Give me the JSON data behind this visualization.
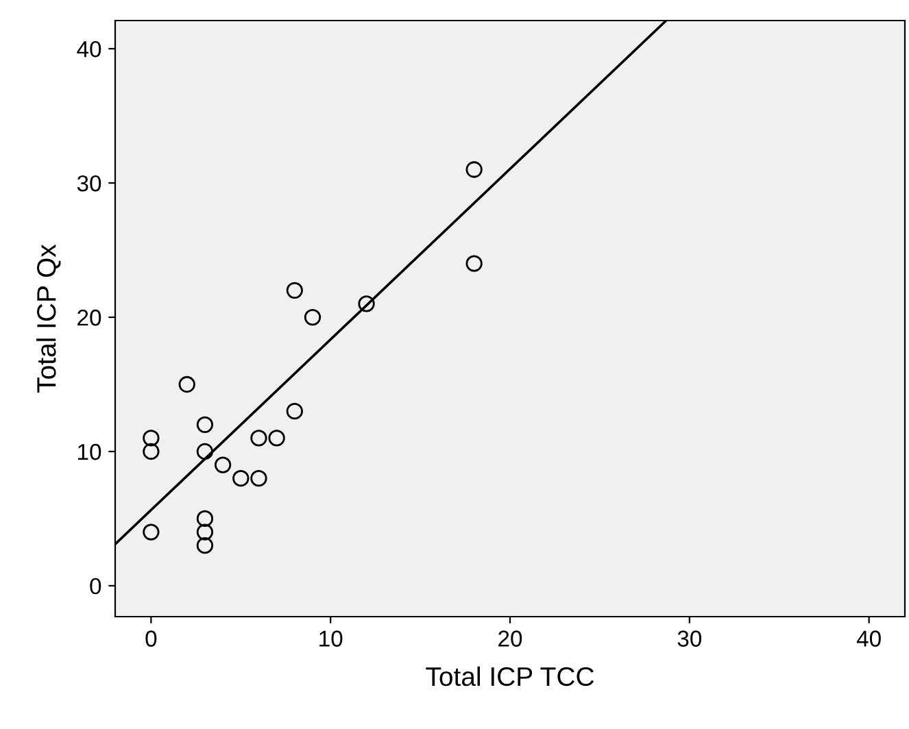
{
  "chart_data": {
    "type": "scatter",
    "xlabel": "Total ICP TCC",
    "ylabel": "Total ICP Qx",
    "x": [
      0,
      0,
      0,
      2,
      3,
      3,
      3,
      3,
      3,
      4,
      5,
      6,
      6,
      7,
      8,
      8,
      9,
      12,
      18,
      18
    ],
    "series": [
      {
        "type": "scatter",
        "color": "#000000",
        "marker": "circle",
        "values": [
          11,
          10,
          4,
          15,
          12,
          10,
          5,
          4,
          3,
          9,
          8,
          8,
          11,
          11,
          22,
          13,
          20,
          21,
          31,
          24
        ]
      },
      {
        "type": "line",
        "color": "#000000",
        "x": [
          -2,
          28.7
        ],
        "values": [
          3.1,
          42.1
        ]
      }
    ],
    "xlim": [
      -2,
      42
    ],
    "ylim": [
      -2.3,
      42.1
    ],
    "xticks": [
      0,
      10,
      20,
      30,
      40
    ],
    "yticks": [
      0,
      10,
      20,
      30,
      40
    ],
    "grid": false,
    "legend": false
  }
}
